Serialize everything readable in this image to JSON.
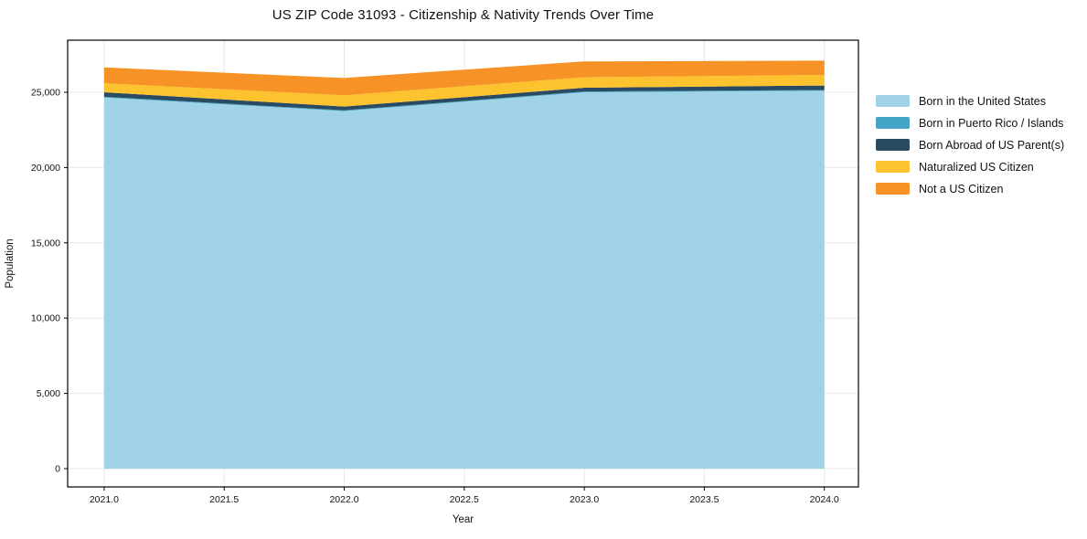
{
  "chart_data": {
    "type": "area",
    "stacked": true,
    "title": "US ZIP Code 31093 - Citizenship & Nativity Trends Over Time",
    "xlabel": "Year",
    "ylabel": "Population",
    "x": [
      2021,
      2022,
      2023,
      2024
    ],
    "series": [
      {
        "name": "Born in the United States",
        "color": "#a0d2e8",
        "values": [
          24650,
          23750,
          25000,
          25100
        ]
      },
      {
        "name": "Born in Puerto Rico / Islands",
        "color": "#45a5c6",
        "values": [
          50,
          50,
          50,
          50
        ]
      },
      {
        "name": "Born Abroad of US Parent(s)",
        "color": "#294a61",
        "values": [
          300,
          250,
          250,
          300
        ]
      },
      {
        "name": "Naturalized US Citizen",
        "color": "#fdc32f",
        "values": [
          600,
          750,
          700,
          700
        ]
      },
      {
        "name": "Not a US Citizen",
        "color": "#f79326",
        "values": [
          1050,
          1150,
          1050,
          950
        ]
      }
    ],
    "x_ticks": [
      {
        "value": 2021.0,
        "label": "2021.0"
      },
      {
        "value": 2021.5,
        "label": "2021.5"
      },
      {
        "value": 2022.0,
        "label": "2022.0"
      },
      {
        "value": 2022.5,
        "label": "2022.5"
      },
      {
        "value": 2023.0,
        "label": "2023.0"
      },
      {
        "value": 2023.5,
        "label": "2023.5"
      },
      {
        "value": 2024.0,
        "label": "2024.0"
      }
    ],
    "y_ticks": [
      {
        "value": 0,
        "label": "0"
      },
      {
        "value": 5000,
        "label": "5,000"
      },
      {
        "value": 10000,
        "label": "10,000"
      },
      {
        "value": 15000,
        "label": "15,000"
      },
      {
        "value": 20000,
        "label": "20,000"
      },
      {
        "value": 25000,
        "label": "25,000"
      }
    ],
    "xlim": [
      2020.848,
      2024.142
    ],
    "ylim": [
      -1214,
      28458
    ],
    "grid": true,
    "legend_position": "outside-right",
    "colors": {
      "grid": "#e8e8e8",
      "spine": "#000000",
      "text": "#111111"
    }
  }
}
